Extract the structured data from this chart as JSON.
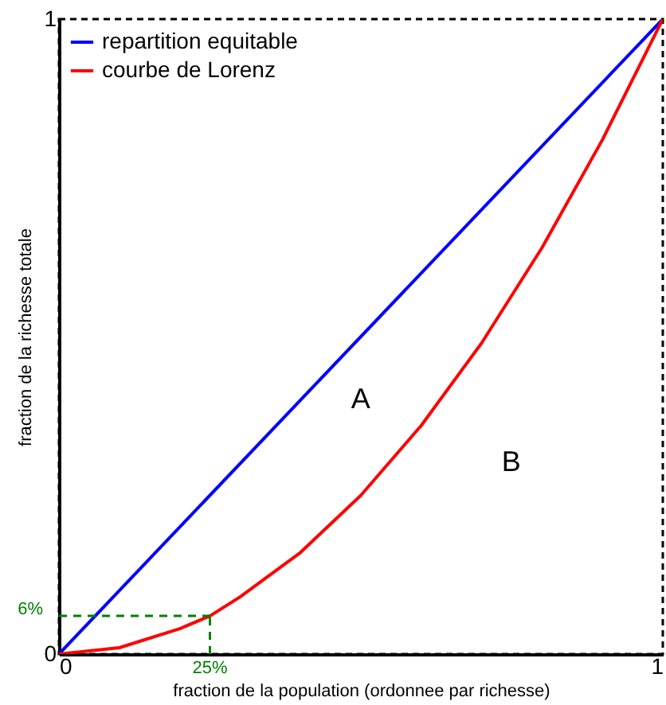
{
  "chart_data": {
    "type": "line",
    "xlabel": "fraction de la population (ordonnee par richesse)",
    "ylabel": "fraction de la richesse totale",
    "xlim": [
      0,
      1
    ],
    "ylim": [
      0,
      1
    ],
    "xticks": [
      0,
      1
    ],
    "yticks": [
      0,
      1
    ],
    "grid": false,
    "legend": "top left",
    "marker": "none",
    "line_style": "solid",
    "series": [
      {
        "name": "repartition equitable",
        "color": "#0000ff",
        "x": [
          0,
          1
        ],
        "values": [
          0,
          1
        ]
      },
      {
        "name": "courbe de Lorenz",
        "color": "#ff0000",
        "x": [
          0,
          0.1,
          0.2,
          0.25,
          0.3,
          0.4,
          0.5,
          0.6,
          0.7,
          0.8,
          0.9,
          1
        ],
        "values": [
          0,
          0.01,
          0.04,
          0.06,
          0.09,
          0.16,
          0.25,
          0.36,
          0.49,
          0.64,
          0.81,
          1
        ]
      }
    ],
    "ref_lines": [
      {
        "axis": "x",
        "value": 0.25,
        "label": "25%",
        "color": "#008000",
        "line_style": "dashed"
      },
      {
        "axis": "y",
        "value": 0.06,
        "label": "6%",
        "color": "#008000",
        "line_style": "dashed"
      }
    ],
    "annotations": [
      "A",
      "B"
    ]
  }
}
